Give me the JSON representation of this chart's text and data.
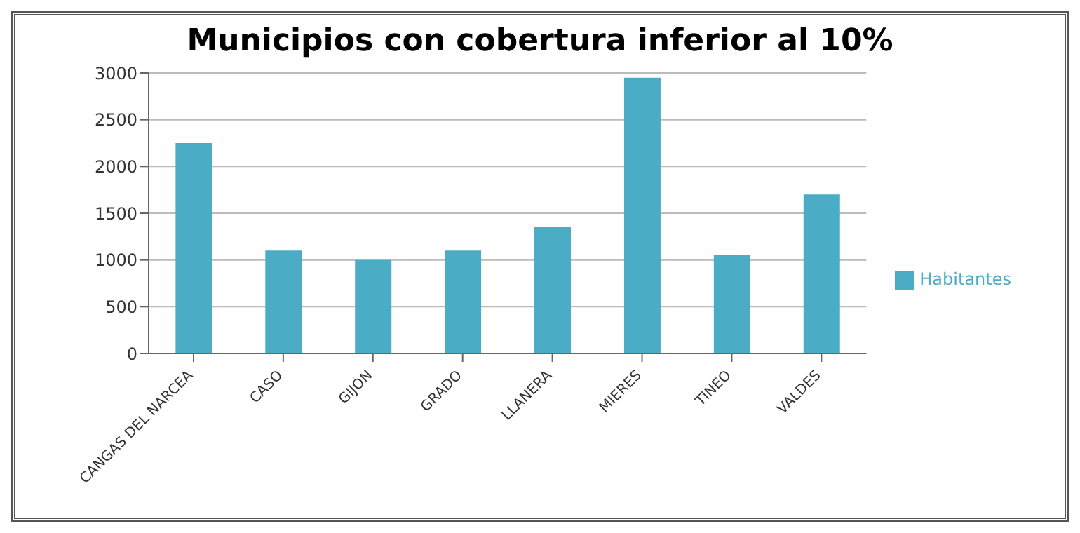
{
  "chart_data": {
    "type": "bar",
    "title": "Municipios con cobertura inferior al 10%",
    "categories": [
      "CANGAS DEL NARCEA",
      "CASO",
      "GIJÓN",
      "GRADO",
      "LLANERA",
      "MIERES",
      "TINEO",
      "VALDES"
    ],
    "series": [
      {
        "name": "Habitantes",
        "color": "#4bacc6",
        "values": [
          2250,
          1100,
          1000,
          1100,
          1350,
          2950,
          1050,
          1700
        ]
      }
    ],
    "ylim": [
      0,
      3000
    ],
    "yticks": [
      0,
      500,
      1000,
      1500,
      2000,
      2500,
      3000
    ],
    "grid": "y",
    "legend": "right"
  }
}
